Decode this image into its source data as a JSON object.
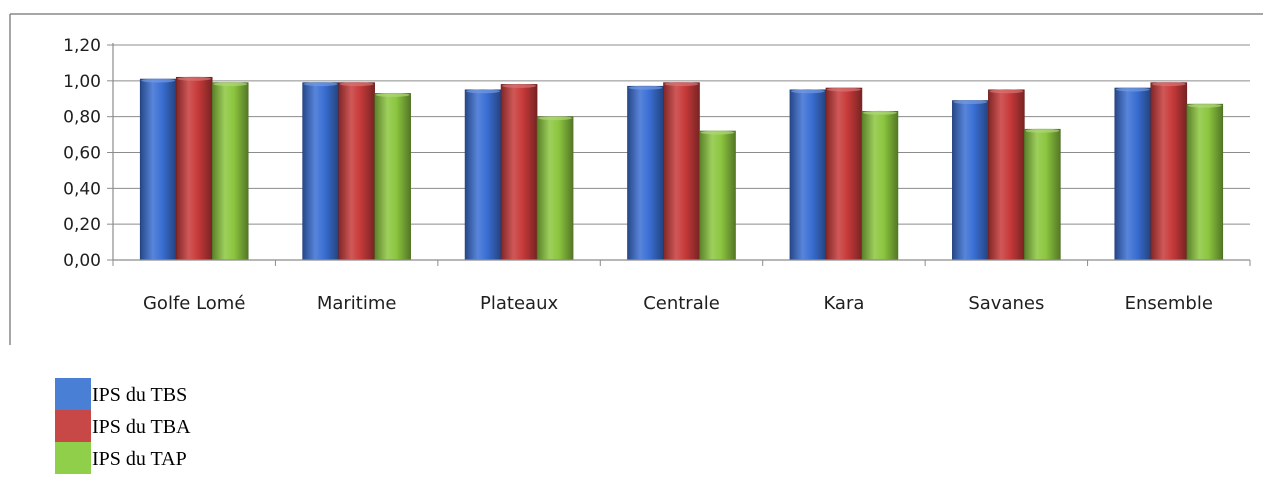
{
  "chart_data": {
    "type": "bar",
    "categories": [
      "Golfe Lomé",
      "Maritime",
      "Plateaux",
      "Centrale",
      "Kara",
      "Savanes",
      "Ensemble"
    ],
    "series": [
      {
        "name": "IPS du TBS",
        "color": "#3a6fd4",
        "values": [
          1.01,
          0.99,
          0.95,
          0.97,
          0.95,
          0.89,
          0.96
        ]
      },
      {
        "name": "IPS du TBA",
        "color": "#c83a3a",
        "values": [
          1.02,
          0.99,
          0.98,
          0.99,
          0.96,
          0.95,
          0.99
        ]
      },
      {
        "name": "IPS du TAP",
        "color": "#8cc63f",
        "values": [
          0.99,
          0.93,
          0.8,
          0.72,
          0.83,
          0.73,
          0.87
        ]
      }
    ],
    "yticks": [
      "0,00",
      "0,20",
      "0,40",
      "0,60",
      "0,80",
      "1,00",
      "1,20"
    ],
    "ylim": [
      0,
      1.2
    ],
    "grid": true,
    "legend_position": "bottom-left",
    "title": "",
    "xlabel": "",
    "ylabel": ""
  },
  "legend": {
    "items": [
      {
        "label": "IPS du TBS",
        "color": "#4a7fd6"
      },
      {
        "label": "IPS du TBA",
        "color": "#c84848"
      },
      {
        "label": "IPS du TAP",
        "color": "#8fcf4a"
      }
    ]
  }
}
